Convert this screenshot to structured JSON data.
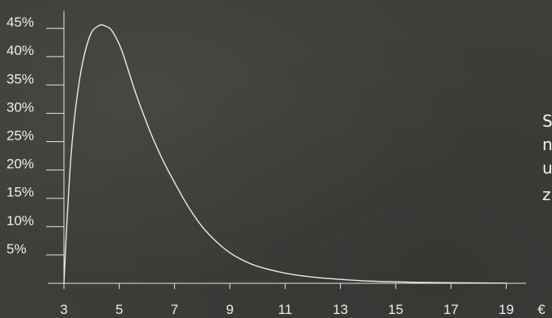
{
  "chart_data": {
    "type": "line",
    "title": "",
    "xlabel": "",
    "ylabel": "",
    "x_unit_label": "€",
    "xlim": [
      3,
      19.6
    ],
    "ylim": [
      0,
      48
    ],
    "x_ticks": [
      3,
      5,
      7,
      9,
      11,
      13,
      15,
      17,
      19
    ],
    "y_ticks": [
      5,
      10,
      15,
      20,
      25,
      30,
      35,
      40,
      45
    ],
    "y_tick_format": "{v}%",
    "grid": false,
    "line_color": "#ececec",
    "axis_color": "#e6e6e6",
    "series": [
      {
        "x": [
          3,
          3.1,
          3.25,
          3.4,
          3.6,
          3.8,
          4.0,
          4.2,
          4.35,
          4.5,
          4.7,
          4.9,
          5.1,
          5.3,
          5.6,
          5.9,
          6.2,
          6.6,
          7.0,
          7.5,
          8.0,
          8.5,
          9.0,
          9.5,
          10.0,
          11.0,
          12.0,
          13.0,
          14.0,
          15.0,
          16.0,
          17.0,
          18.0,
          19.0
        ],
        "y": [
          0,
          10,
          22,
          30,
          37,
          41.5,
          44.3,
          45.3,
          45.6,
          45.4,
          44.8,
          43.2,
          41,
          38,
          33.5,
          29.5,
          25.8,
          21.5,
          17.8,
          13.5,
          10,
          7.4,
          5.4,
          4.0,
          3.0,
          1.8,
          1.1,
          0.7,
          0.4,
          0.25,
          0.15,
          0.1,
          0.05,
          0.03
        ]
      }
    ]
  },
  "side_text": {
    "line1": "S",
    "line2": "n",
    "line3": "u",
    "line4": "z"
  }
}
